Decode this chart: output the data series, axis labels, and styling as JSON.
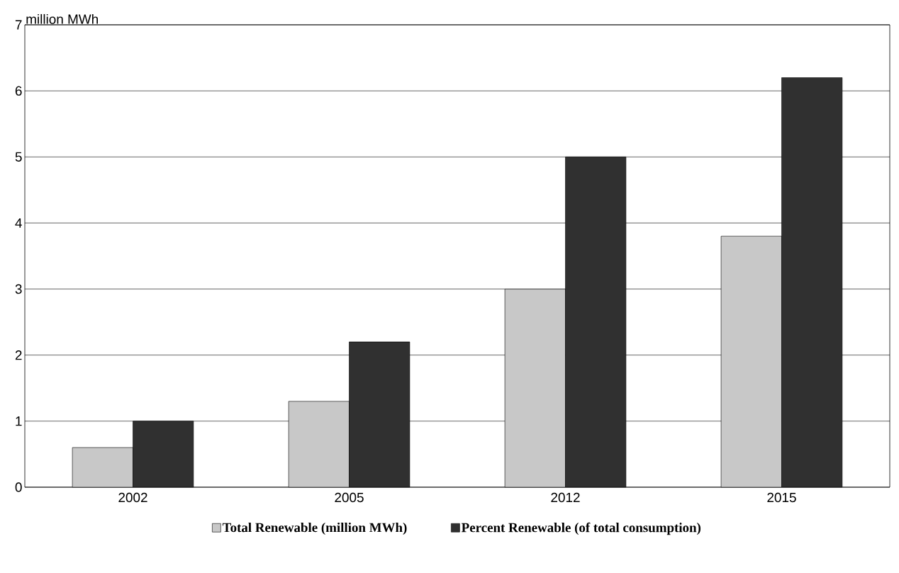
{
  "chart_data": {
    "type": "bar",
    "ylabel": "million MWh",
    "categories": [
      "2002",
      "2005",
      "2012",
      "2015"
    ],
    "series": [
      {
        "name": "Total Renewable (million MWh)",
        "color": "#c8c8c8",
        "values": [
          0.6,
          1.3,
          3.0,
          3.8
        ]
      },
      {
        "name": "Percent Renewable (of total consumption)",
        "color": "#303030",
        "values": [
          1.0,
          2.2,
          5.0,
          6.2
        ]
      }
    ],
    "ylim": [
      0,
      7
    ],
    "yticks": [
      0,
      1,
      2,
      3,
      4,
      5,
      6,
      7
    ],
    "grid": "y",
    "legend": "bottom"
  }
}
